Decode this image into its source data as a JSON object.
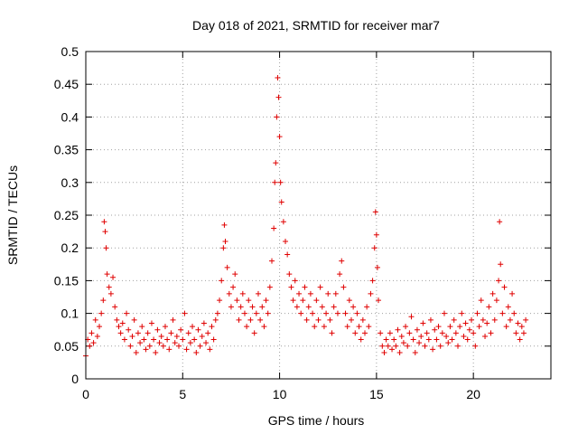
{
  "chart_data": {
    "type": "scatter",
    "title": "Day 018 of 2021, SRMTID for receiver mar7",
    "xlabel": "GPS time / hours",
    "ylabel": "SRMTID / TECUs",
    "xlim": [
      0,
      24
    ],
    "ylim": [
      0,
      0.5
    ],
    "xticks": [
      0,
      5,
      10,
      15,
      20
    ],
    "xtick_labels": [
      "0",
      "5",
      "10",
      "15",
      "20"
    ],
    "yticks": [
      0,
      0.05,
      0.1,
      0.15,
      0.2,
      0.25,
      0.3,
      0.35,
      0.4,
      0.45,
      0.5
    ],
    "ytick_labels": [
      "0",
      "0.05",
      "0.1",
      "0.15",
      "0.2",
      "0.25",
      "0.3",
      "0.35",
      "0.4",
      "0.45",
      "0.5"
    ],
    "grid": true,
    "marker": "+",
    "marker_color": "#e00000",
    "series": [
      {
        "name": "SRMTID",
        "points": [
          [
            0.0,
            0.035
          ],
          [
            0.1,
            0.06
          ],
          [
            0.2,
            0.05
          ],
          [
            0.3,
            0.07
          ],
          [
            0.4,
            0.055
          ],
          [
            0.5,
            0.09
          ],
          [
            0.6,
            0.065
          ],
          [
            0.7,
            0.08
          ],
          [
            0.8,
            0.1
          ],
          [
            0.9,
            0.12
          ],
          [
            0.95,
            0.24
          ],
          [
            1.0,
            0.225
          ],
          [
            1.05,
            0.2
          ],
          [
            1.1,
            0.16
          ],
          [
            1.2,
            0.14
          ],
          [
            1.3,
            0.13
          ],
          [
            1.4,
            0.155
          ],
          [
            1.5,
            0.11
          ],
          [
            1.6,
            0.09
          ],
          [
            1.7,
            0.08
          ],
          [
            1.8,
            0.07
          ],
          [
            1.9,
            0.085
          ],
          [
            2.0,
            0.06
          ],
          [
            2.1,
            0.1
          ],
          [
            2.2,
            0.075
          ],
          [
            2.3,
            0.05
          ],
          [
            2.4,
            0.065
          ],
          [
            2.5,
            0.09
          ],
          [
            2.6,
            0.04
          ],
          [
            2.7,
            0.07
          ],
          [
            2.8,
            0.055
          ],
          [
            2.9,
            0.08
          ],
          [
            3.0,
            0.06
          ],
          [
            3.1,
            0.045
          ],
          [
            3.2,
            0.07
          ],
          [
            3.3,
            0.05
          ],
          [
            3.4,
            0.085
          ],
          [
            3.5,
            0.06
          ],
          [
            3.6,
            0.04
          ],
          [
            3.7,
            0.075
          ],
          [
            3.8,
            0.055
          ],
          [
            3.9,
            0.065
          ],
          [
            4.0,
            0.05
          ],
          [
            4.1,
            0.08
          ],
          [
            4.2,
            0.06
          ],
          [
            4.3,
            0.045
          ],
          [
            4.4,
            0.07
          ],
          [
            4.5,
            0.09
          ],
          [
            4.6,
            0.055
          ],
          [
            4.7,
            0.065
          ],
          [
            4.8,
            0.05
          ],
          [
            4.9,
            0.075
          ],
          [
            5.0,
            0.06
          ],
          [
            5.1,
            0.1
          ],
          [
            5.2,
            0.045
          ],
          [
            5.3,
            0.07
          ],
          [
            5.4,
            0.055
          ],
          [
            5.5,
            0.08
          ],
          [
            5.6,
            0.06
          ],
          [
            5.7,
            0.04
          ],
          [
            5.8,
            0.075
          ],
          [
            5.9,
            0.05
          ],
          [
            6.0,
            0.065
          ],
          [
            6.1,
            0.085
          ],
          [
            6.2,
            0.055
          ],
          [
            6.3,
            0.07
          ],
          [
            6.4,
            0.045
          ],
          [
            6.5,
            0.08
          ],
          [
            6.6,
            0.06
          ],
          [
            6.7,
            0.09
          ],
          [
            6.8,
            0.1
          ],
          [
            6.9,
            0.12
          ],
          [
            7.0,
            0.15
          ],
          [
            7.1,
            0.2
          ],
          [
            7.15,
            0.235
          ],
          [
            7.2,
            0.21
          ],
          [
            7.3,
            0.17
          ],
          [
            7.4,
            0.13
          ],
          [
            7.5,
            0.11
          ],
          [
            7.6,
            0.14
          ],
          [
            7.7,
            0.16
          ],
          [
            7.8,
            0.12
          ],
          [
            7.9,
            0.09
          ],
          [
            8.0,
            0.11
          ],
          [
            8.1,
            0.13
          ],
          [
            8.2,
            0.1
          ],
          [
            8.3,
            0.08
          ],
          [
            8.4,
            0.12
          ],
          [
            8.5,
            0.09
          ],
          [
            8.6,
            0.11
          ],
          [
            8.7,
            0.07
          ],
          [
            8.8,
            0.1
          ],
          [
            8.9,
            0.13
          ],
          [
            9.0,
            0.09
          ],
          [
            9.1,
            0.11
          ],
          [
            9.2,
            0.08
          ],
          [
            9.3,
            0.12
          ],
          [
            9.4,
            0.1
          ],
          [
            9.5,
            0.14
          ],
          [
            9.6,
            0.18
          ],
          [
            9.7,
            0.23
          ],
          [
            9.75,
            0.3
          ],
          [
            9.8,
            0.33
          ],
          [
            9.85,
            0.4
          ],
          [
            9.9,
            0.46
          ],
          [
            9.95,
            0.43
          ],
          [
            10.0,
            0.37
          ],
          [
            10.05,
            0.3
          ],
          [
            10.1,
            0.27
          ],
          [
            10.2,
            0.24
          ],
          [
            10.3,
            0.21
          ],
          [
            10.4,
            0.19
          ],
          [
            10.5,
            0.16
          ],
          [
            10.6,
            0.14
          ],
          [
            10.7,
            0.12
          ],
          [
            10.8,
            0.15
          ],
          [
            10.9,
            0.11
          ],
          [
            11.0,
            0.13
          ],
          [
            11.1,
            0.1
          ],
          [
            11.2,
            0.12
          ],
          [
            11.3,
            0.14
          ],
          [
            11.4,
            0.09
          ],
          [
            11.5,
            0.11
          ],
          [
            11.6,
            0.13
          ],
          [
            11.7,
            0.1
          ],
          [
            11.8,
            0.08
          ],
          [
            11.9,
            0.12
          ],
          [
            12.0,
            0.09
          ],
          [
            12.1,
            0.14
          ],
          [
            12.2,
            0.11
          ],
          [
            12.3,
            0.08
          ],
          [
            12.4,
            0.1
          ],
          [
            12.5,
            0.13
          ],
          [
            12.6,
            0.09
          ],
          [
            12.7,
            0.07
          ],
          [
            12.8,
            0.11
          ],
          [
            12.9,
            0.13
          ],
          [
            13.0,
            0.1
          ],
          [
            13.1,
            0.16
          ],
          [
            13.2,
            0.18
          ],
          [
            13.3,
            0.14
          ],
          [
            13.4,
            0.1
          ],
          [
            13.5,
            0.08
          ],
          [
            13.6,
            0.12
          ],
          [
            13.7,
            0.09
          ],
          [
            13.8,
            0.11
          ],
          [
            13.9,
            0.07
          ],
          [
            14.0,
            0.1
          ],
          [
            14.1,
            0.08
          ],
          [
            14.2,
            0.06
          ],
          [
            14.3,
            0.09
          ],
          [
            14.4,
            0.07
          ],
          [
            14.5,
            0.11
          ],
          [
            14.6,
            0.08
          ],
          [
            14.7,
            0.13
          ],
          [
            14.8,
            0.15
          ],
          [
            14.9,
            0.2
          ],
          [
            14.95,
            0.255
          ],
          [
            15.0,
            0.22
          ],
          [
            15.05,
            0.17
          ],
          [
            15.1,
            0.12
          ],
          [
            15.2,
            0.07
          ],
          [
            15.3,
            0.05
          ],
          [
            15.4,
            0.04
          ],
          [
            15.5,
            0.06
          ],
          [
            15.6,
            0.05
          ],
          [
            15.7,
            0.07
          ],
          [
            15.8,
            0.045
          ],
          [
            15.9,
            0.06
          ],
          [
            16.0,
            0.05
          ],
          [
            16.1,
            0.075
          ],
          [
            16.2,
            0.04
          ],
          [
            16.3,
            0.065
          ],
          [
            16.4,
            0.055
          ],
          [
            16.5,
            0.08
          ],
          [
            16.6,
            0.05
          ],
          [
            16.7,
            0.07
          ],
          [
            16.8,
            0.095
          ],
          [
            16.9,
            0.06
          ],
          [
            17.0,
            0.04
          ],
          [
            17.1,
            0.075
          ],
          [
            17.2,
            0.055
          ],
          [
            17.3,
            0.065
          ],
          [
            17.4,
            0.085
          ],
          [
            17.5,
            0.05
          ],
          [
            17.6,
            0.07
          ],
          [
            17.7,
            0.06
          ],
          [
            17.8,
            0.09
          ],
          [
            17.9,
            0.045
          ],
          [
            18.0,
            0.075
          ],
          [
            18.1,
            0.06
          ],
          [
            18.2,
            0.08
          ],
          [
            18.3,
            0.05
          ],
          [
            18.4,
            0.07
          ],
          [
            18.5,
            0.1
          ],
          [
            18.6,
            0.065
          ],
          [
            18.7,
            0.055
          ],
          [
            18.8,
            0.08
          ],
          [
            18.9,
            0.06
          ],
          [
            19.0,
            0.09
          ],
          [
            19.1,
            0.07
          ],
          [
            19.2,
            0.05
          ],
          [
            19.3,
            0.08
          ],
          [
            19.4,
            0.1
          ],
          [
            19.5,
            0.065
          ],
          [
            19.6,
            0.085
          ],
          [
            19.7,
            0.06
          ],
          [
            19.8,
            0.075
          ],
          [
            19.9,
            0.09
          ],
          [
            20.0,
            0.07
          ],
          [
            20.1,
            0.05
          ],
          [
            20.2,
            0.1
          ],
          [
            20.3,
            0.08
          ],
          [
            20.4,
            0.12
          ],
          [
            20.5,
            0.09
          ],
          [
            20.6,
            0.065
          ],
          [
            20.7,
            0.085
          ],
          [
            20.8,
            0.11
          ],
          [
            20.9,
            0.07
          ],
          [
            21.0,
            0.13
          ],
          [
            21.1,
            0.09
          ],
          [
            21.2,
            0.12
          ],
          [
            21.3,
            0.15
          ],
          [
            21.35,
            0.24
          ],
          [
            21.4,
            0.175
          ],
          [
            21.5,
            0.1
          ],
          [
            21.6,
            0.14
          ],
          [
            21.7,
            0.08
          ],
          [
            21.8,
            0.11
          ],
          [
            21.9,
            0.09
          ],
          [
            22.0,
            0.13
          ],
          [
            22.1,
            0.1
          ],
          [
            22.2,
            0.07
          ],
          [
            22.3,
            0.085
          ],
          [
            22.4,
            0.06
          ],
          [
            22.5,
            0.08
          ],
          [
            22.6,
            0.07
          ],
          [
            22.7,
            0.09
          ]
        ]
      }
    ]
  }
}
